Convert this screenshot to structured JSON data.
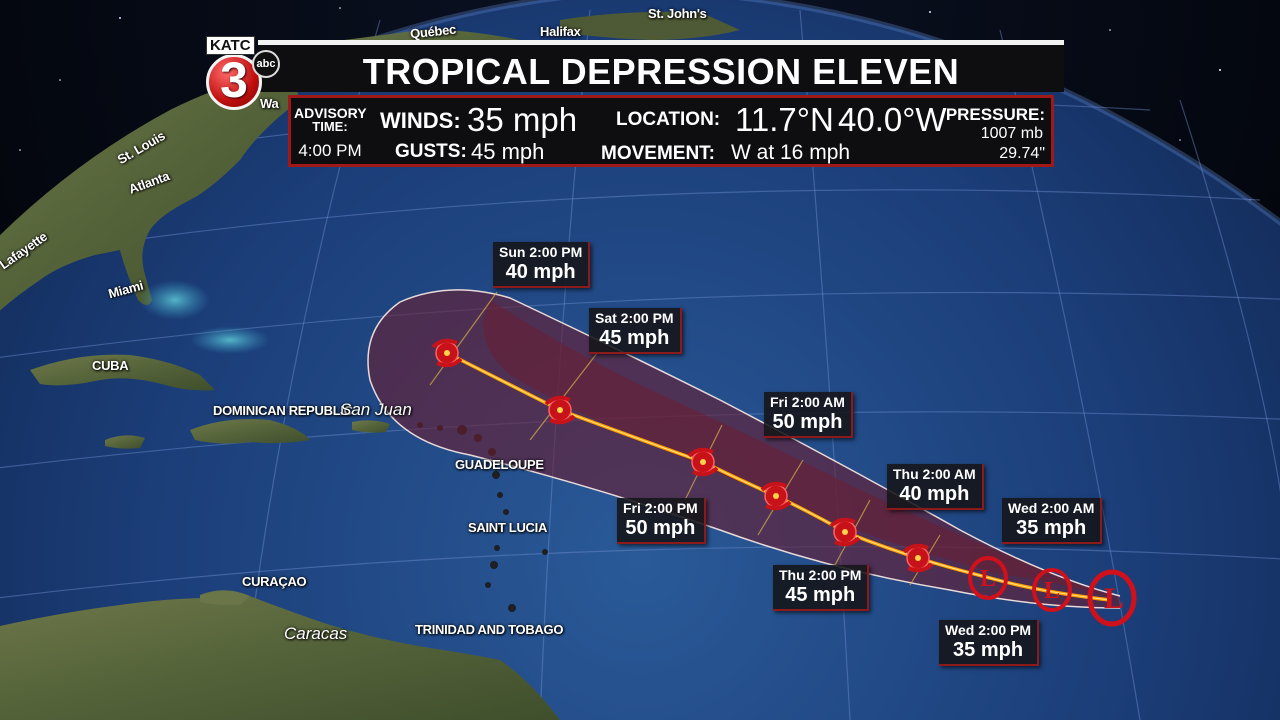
{
  "title": "TROPICAL DEPRESSION ELEVEN",
  "advisory": {
    "label_line1": "ADVISORY",
    "label_line2": "TIME:",
    "time": "4:00 PM"
  },
  "winds": {
    "label": "WINDS:",
    "value": "35 mph"
  },
  "gusts": {
    "label": "GUSTS:",
    "value": "45 mph"
  },
  "location": {
    "label": "LOCATION:",
    "lat": "11.7°N",
    "lon": "40.0°W"
  },
  "movement": {
    "label": "MOVEMENT:",
    "value": "W at 16 mph"
  },
  "pressure": {
    "label": "PRESSURE:",
    "mb": "1007 mb",
    "inches": "29.74\""
  },
  "logo": {
    "station": "KATC",
    "channel": "3",
    "network": "abc"
  },
  "forecast_points": [
    {
      "time": "Wed 2:00 AM",
      "wind": "35 mph"
    },
    {
      "time": "Wed 2:00 PM",
      "wind": "35 mph"
    },
    {
      "time": "Thu 2:00 AM",
      "wind": "40 mph"
    },
    {
      "time": "Thu 2:00 PM",
      "wind": "45 mph"
    },
    {
      "time": "Fri 2:00 AM",
      "wind": "50 mph"
    },
    {
      "time": "Fri 2:00 PM",
      "wind": "50 mph"
    },
    {
      "time": "Sat 2:00 PM",
      "wind": "45 mph"
    },
    {
      "time": "Sun 2:00 PM",
      "wind": "40 mph"
    }
  ],
  "map_labels": {
    "quebec": "Québec",
    "halifax": "Halifax",
    "st_johns": "St. John's",
    "atlanta": "Atlanta",
    "st_louis": "St. Louis",
    "lafayette": "Lafayette",
    "miami": "Miami",
    "cuba": "CUBA",
    "dominican_republic": "DOMINICAN REPUBLIC",
    "san_juan": "San Juan",
    "guadeloupe": "GUADELOUPE",
    "saint_lucia": "SAINT LUCIA",
    "curacao": "CURAÇAO",
    "caracas": "Caracas",
    "trinidad": "TRINIDAD AND TOBAGO",
    "wa": "Wa"
  },
  "colors": {
    "accent_red": "#a01818",
    "track": "#ffb020",
    "cone_fill": "#6b1e30",
    "ocean": "#1a3a6e",
    "land": "#5d6b3c"
  },
  "icons": [
    "storm-symbol-icon",
    "low-symbol-icon"
  ]
}
